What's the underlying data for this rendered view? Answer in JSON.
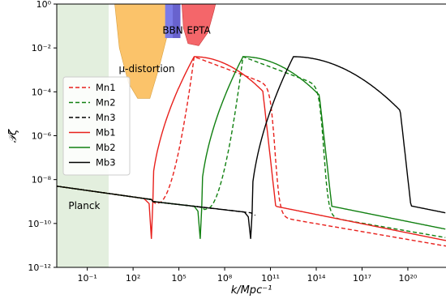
{
  "chart_data": {
    "type": "line",
    "title": "",
    "xlabel": "k/Mpc⁻¹",
    "ylabel": "𝒫ζ",
    "xscale": "log",
    "yscale": "log",
    "xlim_exp": [
      -3,
      22.5
    ],
    "ylim_exp": [
      -12,
      0
    ],
    "x_ticks": [
      {
        "exp": -1,
        "label": "10⁻¹"
      },
      {
        "exp": 2,
        "label": "10²"
      },
      {
        "exp": 5,
        "label": "10⁵"
      },
      {
        "exp": 8,
        "label": "10⁸"
      },
      {
        "exp": 11,
        "label": "10¹¹"
      },
      {
        "exp": 14,
        "label": "10¹⁴"
      },
      {
        "exp": 17,
        "label": "10¹⁷"
      },
      {
        "exp": 20,
        "label": "10²⁰"
      }
    ],
    "y_ticks": [
      {
        "exp": 0,
        "label": "10⁰"
      },
      {
        "exp": -2,
        "label": "10⁻²"
      },
      {
        "exp": -4,
        "label": "10⁻⁴"
      },
      {
        "exp": -6,
        "label": "10⁻⁶"
      },
      {
        "exp": -8,
        "label": "10⁻⁸"
      },
      {
        "exp": -10,
        "label": "10⁻¹⁰"
      },
      {
        "exp": -12,
        "label": "10⁻¹²"
      }
    ],
    "legend": {
      "placement": "upper-left"
    },
    "regions": [
      {
        "name": "Planck",
        "color": "#d9ead3"
      },
      {
        "name": "μ-distortion",
        "color": "#fbc36a"
      },
      {
        "name": "BBN",
        "color": "#7b7be8"
      },
      {
        "name": "EPTA",
        "color": "#f4666a"
      }
    ],
    "series": [
      {
        "name": "Mn1",
        "color": "#e8201c",
        "dash": true,
        "peak": {
          "x_exp": 6,
          "y_exp": -2.4
        }
      },
      {
        "name": "Mn2",
        "color": "#118011",
        "dash": true,
        "peak": {
          "x_exp": 9.2,
          "y_exp": -2.4
        }
      },
      {
        "name": "Mn3",
        "color": "#000000",
        "dash": true,
        "peak": {
          "x_exp": 12.5,
          "y_exp": -2.4
        }
      },
      {
        "name": "Mb1",
        "color": "#e8201c",
        "dash": false,
        "peak": {
          "x_exp": 6,
          "y_exp": -2.4
        }
      },
      {
        "name": "Mb2",
        "color": "#118011",
        "dash": false,
        "peak": {
          "x_exp": 9.2,
          "y_exp": -2.4
        }
      },
      {
        "name": "Mb3",
        "color": "#000000",
        "dash": false,
        "peak": {
          "x_exp": 12.5,
          "y_exp": -2.4
        }
      }
    ]
  }
}
